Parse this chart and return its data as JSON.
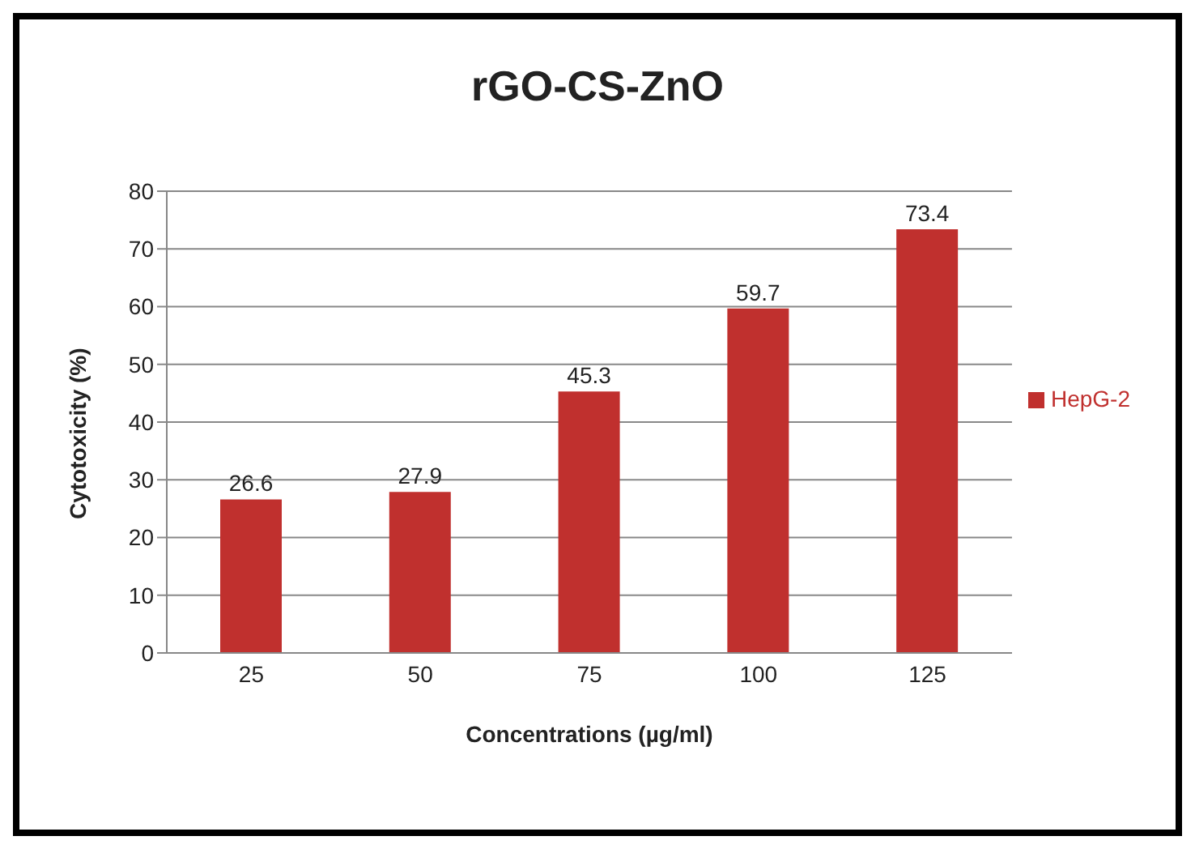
{
  "chart_data": {
    "type": "bar",
    "title": "rGO-CS-ZnO",
    "xlabel": "Concentrations (µg/ml)",
    "ylabel": "Cytotoxicity (%)",
    "categories": [
      "25",
      "50",
      "75",
      "100",
      "125"
    ],
    "series": [
      {
        "name": "HepG-2",
        "color": "#c0302e",
        "values": [
          26.6,
          27.9,
          45.3,
          59.7,
          73.4
        ]
      }
    ],
    "ylim": [
      0,
      80
    ],
    "yticks": [
      0,
      10,
      20,
      30,
      40,
      50,
      60,
      70,
      80
    ],
    "grid": "y",
    "legend": "right",
    "data_labels": true
  }
}
